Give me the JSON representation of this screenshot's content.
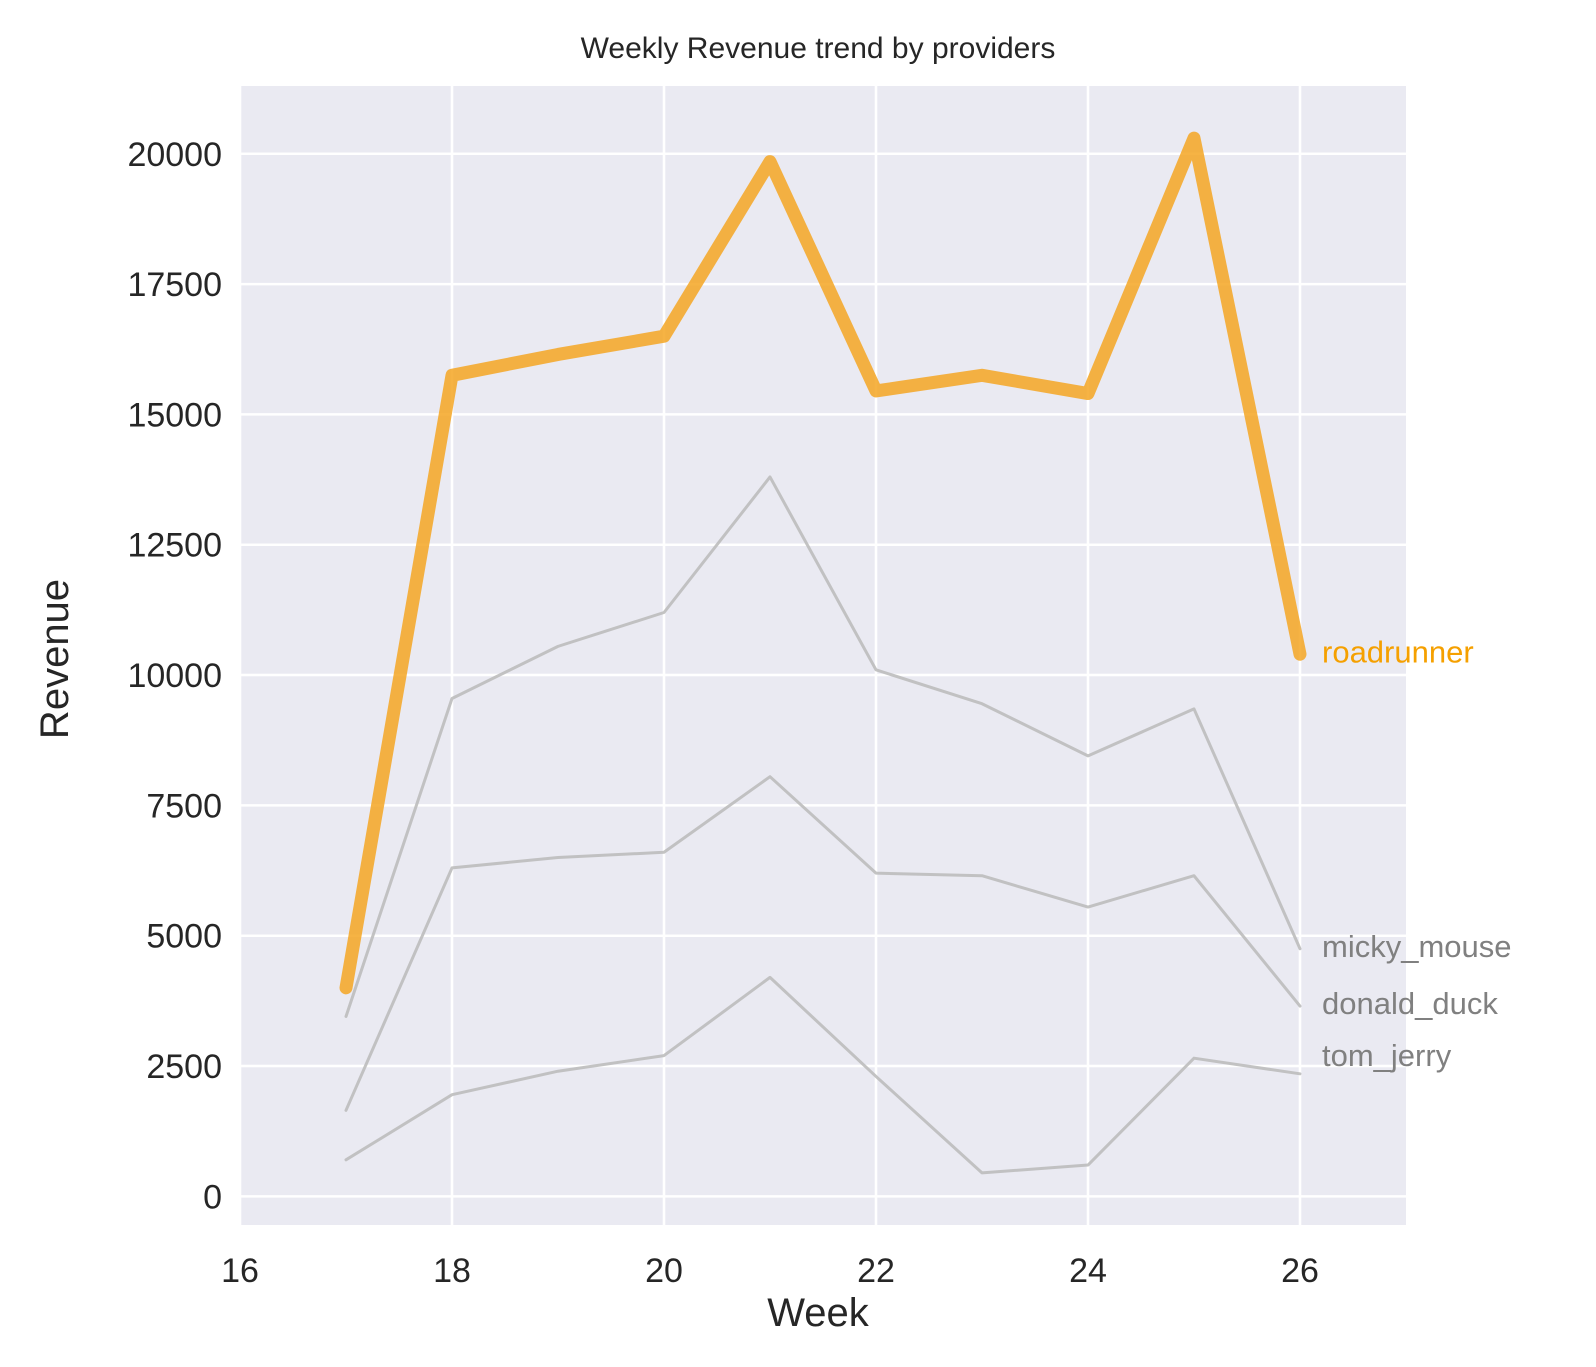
{
  "chart_data": {
    "type": "line",
    "title": "Weekly Revenue trend by providers",
    "xlabel": "Week",
    "ylabel": "Revenue",
    "xlim": [
      16,
      27
    ],
    "ylim": [
      -550,
      21300
    ],
    "xticks": [
      16,
      18,
      20,
      22,
      24,
      26
    ],
    "yticks": [
      0,
      2500,
      5000,
      7500,
      10000,
      12500,
      15000,
      17500,
      20000
    ],
    "grid": true,
    "x": [
      17,
      18,
      19,
      20,
      21,
      22,
      23,
      24,
      25,
      26
    ],
    "series": [
      {
        "name": "roadrunner",
        "values": [
          4000,
          15750,
          16150,
          16500,
          19850,
          15450,
          15750,
          15400,
          20300,
          10400
        ],
        "color": "#f5a623",
        "highlight": true
      },
      {
        "name": "micky_mouse",
        "values": [
          3450,
          9550,
          10550,
          11200,
          13800,
          10100,
          9450,
          8450,
          9350,
          4750
        ],
        "color": "#bdbdbd",
        "highlight": false
      },
      {
        "name": "donald_duck",
        "values": [
          1650,
          6300,
          6500,
          6600,
          8050,
          6200,
          6150,
          5550,
          6150,
          3650
        ],
        "color": "#bdbdbd",
        "highlight": false
      },
      {
        "name": "tom_jerry",
        "values": [
          700,
          1950,
          2400,
          2700,
          4200,
          2300,
          450,
          600,
          2650,
          2350
        ],
        "color": "#bdbdbd",
        "highlight": false
      }
    ]
  },
  "colors": {
    "plot_background": "#eaeaf2",
    "grid": "#ffffff",
    "highlight": "#f5a623",
    "muted_line": "#bdbdbd",
    "muted_label": "#808080",
    "highlight_label": "#f5a000"
  }
}
